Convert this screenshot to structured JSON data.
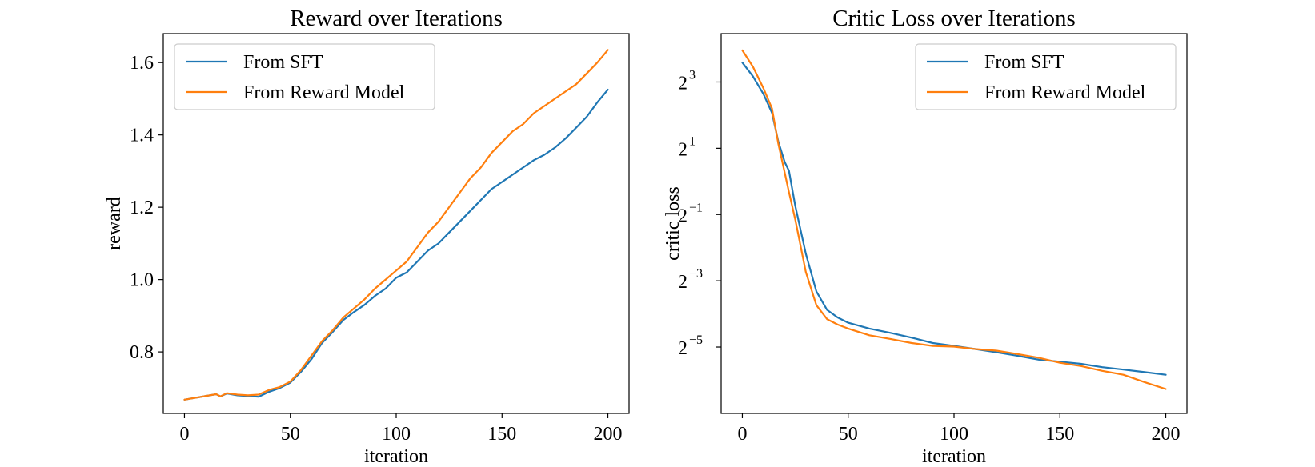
{
  "chart_data": [
    {
      "type": "line",
      "title": "Reward over Iterations",
      "xlabel": "iteration",
      "ylabel": "reward",
      "xlim": [
        -10,
        210
      ],
      "ylim": [
        0.63,
        1.68
      ],
      "xticks": [
        0,
        50,
        100,
        150,
        200
      ],
      "xtick_labels": [
        "0",
        "50",
        "100",
        "150",
        "200"
      ],
      "yticks": [
        0.8,
        1.0,
        1.2,
        1.4,
        1.6
      ],
      "ytick_labels": [
        "0.8",
        "1.0",
        "1.2",
        "1.4",
        "1.6"
      ],
      "grid": false,
      "legend": "upper-left",
      "series": [
        {
          "name": "From SFT",
          "color": "#1f77b4",
          "x": [
            0,
            15,
            17,
            20,
            25,
            30,
            35,
            40,
            45,
            50,
            55,
            60,
            65,
            70,
            75,
            80,
            85,
            90,
            95,
            100,
            105,
            110,
            115,
            120,
            125,
            130,
            135,
            140,
            145,
            150,
            155,
            160,
            165,
            170,
            175,
            180,
            185,
            190,
            195,
            200
          ],
          "y": [
            0.668,
            0.683,
            0.677,
            0.685,
            0.68,
            0.678,
            0.676,
            0.69,
            0.7,
            0.715,
            0.745,
            0.78,
            0.825,
            0.855,
            0.888,
            0.91,
            0.93,
            0.955,
            0.975,
            1.005,
            1.02,
            1.05,
            1.08,
            1.1,
            1.13,
            1.16,
            1.19,
            1.22,
            1.25,
            1.27,
            1.29,
            1.31,
            1.33,
            1.345,
            1.365,
            1.39,
            1.42,
            1.45,
            1.49,
            1.525
          ]
        },
        {
          "name": "From Reward Model",
          "color": "#ff7f0e",
          "x": [
            0,
            15,
            17,
            20,
            25,
            30,
            35,
            40,
            45,
            50,
            55,
            60,
            65,
            70,
            75,
            80,
            85,
            90,
            95,
            100,
            105,
            110,
            115,
            120,
            125,
            130,
            135,
            140,
            145,
            150,
            155,
            160,
            165,
            170,
            175,
            180,
            185,
            190,
            195,
            200
          ],
          "y": [
            0.668,
            0.683,
            0.677,
            0.686,
            0.682,
            0.68,
            0.682,
            0.695,
            0.703,
            0.718,
            0.75,
            0.79,
            0.83,
            0.86,
            0.895,
            0.92,
            0.945,
            0.975,
            1.0,
            1.025,
            1.05,
            1.09,
            1.13,
            1.16,
            1.2,
            1.24,
            1.28,
            1.31,
            1.35,
            1.38,
            1.41,
            1.43,
            1.46,
            1.48,
            1.5,
            1.52,
            1.54,
            1.57,
            1.6,
            1.635
          ]
        }
      ]
    },
    {
      "type": "line",
      "title": "Critic Loss over Iterations",
      "xlabel": "iteration",
      "ylabel": "critic loss",
      "yscale": "log2",
      "xlim": [
        -10,
        210
      ],
      "ylim": [
        0.0078,
        22
      ],
      "xticks": [
        0,
        50,
        100,
        150,
        200
      ],
      "xtick_labels": [
        "0",
        "50",
        "100",
        "150",
        "200"
      ],
      "yticks": [
        0.03125,
        0.125,
        0.5,
        2,
        8
      ],
      "ytick_labels": [
        {
          "base": "2",
          "exp": "−5"
        },
        {
          "base": "2",
          "exp": "−3"
        },
        {
          "base": "2",
          "exp": "−1"
        },
        {
          "base": "2",
          "exp": "1"
        },
        {
          "base": "2",
          "exp": "3"
        }
      ],
      "grid": false,
      "legend": "upper-right",
      "series": [
        {
          "name": "From SFT",
          "color": "#1f77b4",
          "x": [
            0,
            5,
            10,
            14,
            17,
            20,
            22,
            25,
            30,
            35,
            40,
            45,
            50,
            60,
            70,
            80,
            90,
            100,
            110,
            120,
            130,
            140,
            150,
            160,
            170,
            180,
            190,
            200
          ],
          "y": [
            12.0,
            9.0,
            6.2,
            4.2,
            2.3,
            1.5,
            1.25,
            0.6,
            0.22,
            0.1,
            0.068,
            0.058,
            0.052,
            0.046,
            0.042,
            0.038,
            0.034,
            0.032,
            0.03,
            0.028,
            0.026,
            0.024,
            0.023,
            0.022,
            0.0205,
            0.0195,
            0.0185,
            0.0175
          ]
        },
        {
          "name": "From Reward Model",
          "color": "#ff7f0e",
          "x": [
            0,
            5,
            10,
            14,
            17,
            20,
            22,
            25,
            30,
            35,
            40,
            45,
            50,
            60,
            70,
            80,
            90,
            100,
            110,
            120,
            130,
            140,
            150,
            160,
            170,
            180,
            190,
            200
          ],
          "y": [
            15.5,
            11.0,
            7.0,
            4.6,
            2.2,
            1.2,
            0.8,
            0.45,
            0.15,
            0.075,
            0.056,
            0.05,
            0.046,
            0.04,
            0.037,
            0.034,
            0.032,
            0.0315,
            0.03,
            0.029,
            0.027,
            0.025,
            0.0225,
            0.021,
            0.019,
            0.0175,
            0.015,
            0.013
          ]
        }
      ]
    }
  ]
}
